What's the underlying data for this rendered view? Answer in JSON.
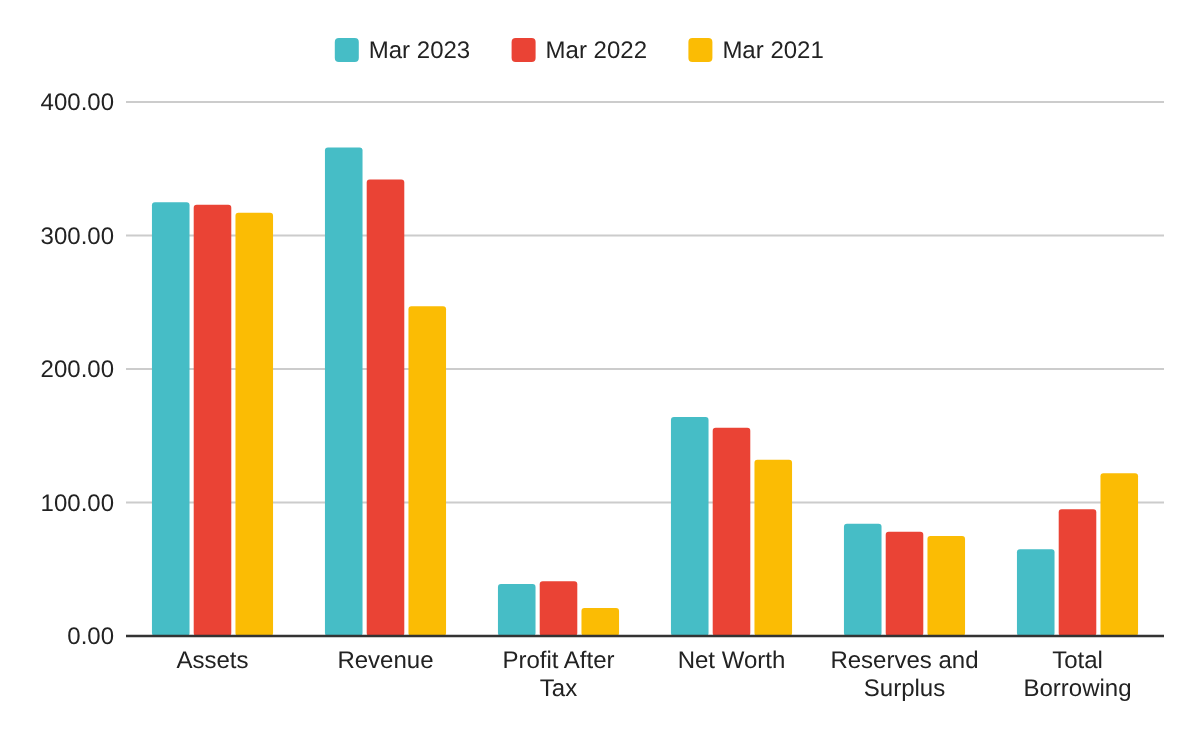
{
  "chart_data": {
    "type": "bar",
    "categories": [
      "Assets",
      "Revenue",
      "Profit After Tax",
      "Net Worth",
      "Reserves and Surplus",
      "Total Borrowing"
    ],
    "series": [
      {
        "name": "Mar 2023",
        "color": "#46bdc6",
        "values": [
          325,
          366,
          39,
          164,
          84,
          65
        ]
      },
      {
        "name": "Mar 2022",
        "color": "#ea4335",
        "values": [
          323,
          342,
          41,
          156,
          78,
          95
        ]
      },
      {
        "name": "Mar 2021",
        "color": "#fbbc04",
        "values": [
          317,
          247,
          21,
          132,
          75,
          122
        ]
      }
    ],
    "ylim": [
      0,
      400
    ],
    "yticks": [
      {
        "value": 0,
        "label": "0.00"
      },
      {
        "value": 100,
        "label": "100.00"
      },
      {
        "value": 200,
        "label": "200.00"
      },
      {
        "value": 300,
        "label": "300.00"
      },
      {
        "value": 400,
        "label": "400.00"
      }
    ],
    "grid": "y",
    "legend": "top"
  }
}
